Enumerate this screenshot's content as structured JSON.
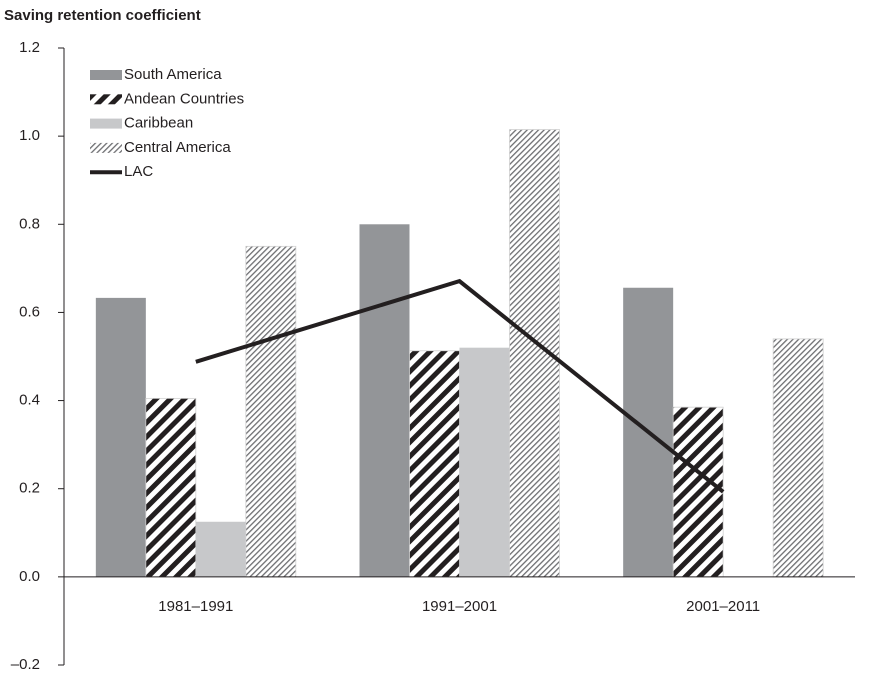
{
  "chart_data": {
    "type": "bar",
    "title": "Saving retention coefficient",
    "categories": [
      "1981–1991",
      "1991–2001",
      "2001–2011"
    ],
    "series": [
      {
        "name": "South America",
        "color": "#939598",
        "pattern": "solid",
        "values": [
          0.633,
          0.8,
          0.656
        ]
      },
      {
        "name": "Andean Countries",
        "color": "#231f20",
        "pattern": "thick-stripes",
        "values": [
          0.405,
          0.513,
          0.385
        ]
      },
      {
        "name": "Caribbean",
        "color": "#c7c8ca",
        "pattern": "solid",
        "values": [
          0.125,
          0.52,
          null
        ]
      },
      {
        "name": "Central America",
        "color": "#6d6e71",
        "pattern": "fine-hatch",
        "values": [
          0.75,
          1.015,
          0.54
        ]
      },
      {
        "name": "LAC",
        "color": "#231f20",
        "type": "line",
        "values": [
          0.488,
          0.671,
          0.193
        ]
      }
    ],
    "ylim": [
      -0.2,
      1.2
    ],
    "yticks": [
      1.2,
      {
        "value": 1.0,
        "label": "1.0"
      },
      0.8,
      0.6,
      0.4,
      0.2,
      {
        "value": 0,
        "label": "0.0"
      },
      {
        "value": -0.2,
        "label": "–0.2"
      }
    ],
    "legend": "upper-left"
  }
}
